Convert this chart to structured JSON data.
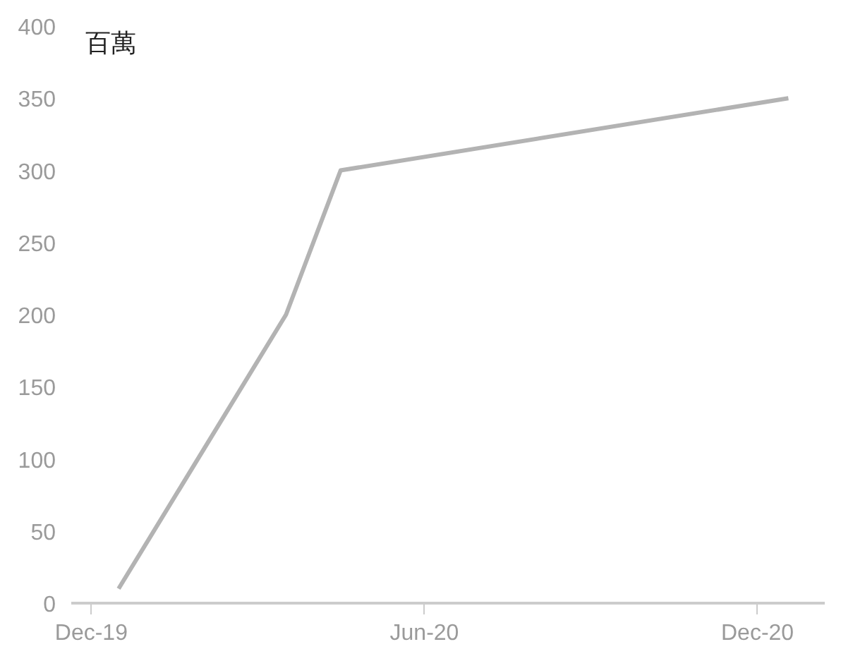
{
  "chart_data": {
    "type": "line",
    "ylabel": "百萬",
    "x": [
      "2019-12-16",
      "2020-03-17",
      "2020-04-16",
      "2020-12-18"
    ],
    "series": [
      {
        "color": "#b3b3b3",
        "values": [
          10,
          200,
          300,
          350
        ]
      }
    ],
    "xlim": [
      "2019-11-20",
      "2021-01-07"
    ],
    "xticks": [
      {
        "value": "2019-12-01",
        "label": "Dec-19"
      },
      {
        "value": "2020-06-01",
        "label": "Jun-20"
      },
      {
        "value": "2020-12-01",
        "label": "Dec-20"
      }
    ],
    "ylim": [
      0,
      400
    ],
    "yticks": [
      0,
      50,
      100,
      150,
      200,
      250,
      300,
      350,
      400
    ],
    "grid": false,
    "marker": "none",
    "line_style": "solid"
  }
}
